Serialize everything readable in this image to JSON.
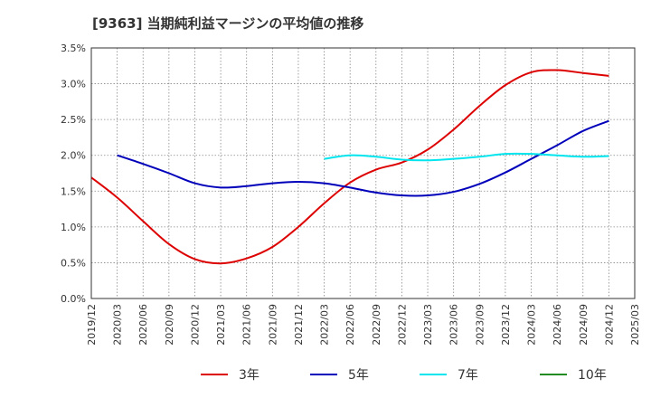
{
  "chart_data": {
    "type": "line",
    "title": "[9363]  当期純利益マージンの平均値の推移",
    "xlabel": "",
    "ylabel": "",
    "ylim": [
      0,
      3.5
    ],
    "y_ticks": [
      "0.0%",
      "0.5%",
      "1.0%",
      "1.5%",
      "2.0%",
      "2.5%",
      "3.0%",
      "3.5%"
    ],
    "y_tick_values": [
      0,
      0.5,
      1.0,
      1.5,
      2.0,
      2.5,
      3.0,
      3.5
    ],
    "x_ticks": [
      "2019/12",
      "2020/03",
      "2020/06",
      "2020/09",
      "2020/12",
      "2021/03",
      "2021/06",
      "2021/09",
      "2021/12",
      "2022/03",
      "2022/06",
      "2022/09",
      "2022/12",
      "2023/03",
      "2023/06",
      "2023/09",
      "2023/12",
      "2024/03",
      "2024/06",
      "2024/09",
      "2024/12",
      "2025/03"
    ],
    "grid": true,
    "legend_position": "bottom",
    "series": [
      {
        "name": "3年",
        "color": "#dd0000",
        "values": [
          1.69,
          1.41,
          1.08,
          0.76,
          0.55,
          0.49,
          0.56,
          0.72,
          1.0,
          1.33,
          1.62,
          1.8,
          1.9,
          2.08,
          2.36,
          2.69,
          2.98,
          3.16,
          3.19,
          3.15,
          3.11,
          null
        ]
      },
      {
        "name": "5年",
        "color": "#0000bb",
        "values": [
          null,
          2.0,
          1.88,
          1.75,
          1.61,
          1.55,
          1.57,
          1.61,
          1.63,
          1.61,
          1.55,
          1.48,
          1.44,
          1.44,
          1.49,
          1.6,
          1.76,
          1.95,
          2.14,
          2.34,
          2.48,
          null
        ]
      },
      {
        "name": "7年",
        "color": "#00e5ee",
        "values": [
          null,
          null,
          null,
          null,
          null,
          null,
          null,
          null,
          null,
          1.95,
          2.0,
          1.98,
          1.94,
          1.93,
          1.95,
          1.98,
          2.02,
          2.02,
          2.0,
          1.98,
          1.99,
          null
        ]
      },
      {
        "name": "10年",
        "color": "#228b22",
        "values": [
          null,
          null,
          null,
          null,
          null,
          null,
          null,
          null,
          null,
          null,
          null,
          null,
          null,
          null,
          null,
          null,
          null,
          null,
          null,
          null,
          null,
          null
        ]
      }
    ]
  }
}
